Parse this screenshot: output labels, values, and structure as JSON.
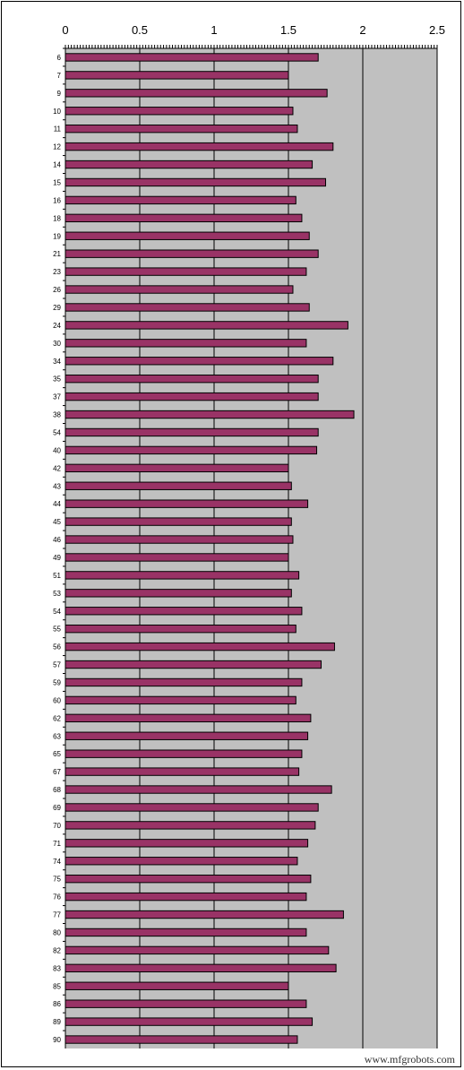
{
  "chart_data": {
    "type": "bar",
    "orientation": "horizontal",
    "title": "",
    "xlabel": "",
    "ylabel": "",
    "xlim": [
      0,
      2.5
    ],
    "x_ticks": [
      "0",
      "0.5",
      "1",
      "1.5",
      "2",
      "2.5"
    ],
    "grid": true,
    "legend": "none",
    "colors": {
      "bar": "#993366",
      "plot_bg": "#c0c0c0",
      "bar_edge": "#000000"
    },
    "categories": [
      "6",
      "7",
      "9",
      "10",
      "11",
      "12",
      "14",
      "15",
      "16",
      "18",
      "19",
      "21",
      "23",
      "26",
      "29",
      "24",
      "30",
      "34",
      "35",
      "37",
      "38",
      "54",
      "40",
      "42",
      "43",
      "44",
      "45",
      "46",
      "49",
      "51",
      "53",
      "54",
      "55",
      "56",
      "57",
      "59",
      "60",
      "62",
      "63",
      "65",
      "67",
      "68",
      "69",
      "70",
      "71",
      "74",
      "75",
      "76",
      "77",
      "80",
      "82",
      "83",
      "85",
      "86",
      "89",
      "90"
    ],
    "values": [
      1.7,
      1.5,
      1.76,
      1.53,
      1.56,
      1.8,
      1.66,
      1.75,
      1.55,
      1.59,
      1.64,
      1.7,
      1.62,
      1.53,
      1.64,
      1.9,
      1.62,
      1.8,
      1.7,
      1.7,
      1.94,
      1.7,
      1.69,
      1.5,
      1.52,
      1.63,
      1.52,
      1.53,
      1.5,
      1.57,
      1.52,
      1.59,
      1.55,
      1.81,
      1.72,
      1.59,
      1.55,
      1.65,
      1.63,
      1.59,
      1.57,
      1.79,
      1.7,
      1.68,
      1.63,
      1.56,
      1.65,
      1.62,
      1.87,
      1.62,
      1.77,
      1.82,
      1.5,
      1.62,
      1.66,
      1.56
    ]
  },
  "watermark": "www.mfgrobots.com"
}
